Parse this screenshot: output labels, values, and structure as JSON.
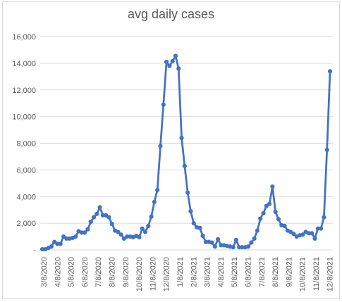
{
  "chart_data": {
    "type": "line",
    "title": "avg daily cases",
    "xlabel": "",
    "ylabel": "",
    "ylim": [
      0,
      16000
    ],
    "y_ticks": [
      "-",
      "2,000",
      "4,000",
      "6,000",
      "8,000",
      "10,000",
      "12,000",
      "14,000",
      "16,000"
    ],
    "x_ticks": [
      "3/8/2020",
      "4/8/2020",
      "5/8/2020",
      "6/8/2020",
      "7/8/2020",
      "8/8/2020",
      "9/8/2020",
      "10/8/2020",
      "11/8/2020",
      "12/8/2020",
      "1/8/2021",
      "2/8/2021",
      "3/8/2021",
      "4/8/2021",
      "5/8/2021",
      "6/8/2021",
      "7/8/2021",
      "8/8/2021",
      "9/8/2021",
      "10/8/2021",
      "11/8/2021",
      "12/8/2021"
    ],
    "gridlines": true,
    "legend": "none",
    "series_color": "#4472c4",
    "series": [
      {
        "values": [
          50,
          50,
          150,
          250,
          600,
          450,
          450,
          1000,
          850,
          850,
          900,
          1000,
          1400,
          1300,
          1300,
          1550,
          2100,
          2450,
          2700,
          3200,
          2600,
          2600,
          2450,
          1950,
          1450,
          1350,
          1150,
          850,
          1000,
          1000,
          950,
          1050,
          950,
          1600,
          1350,
          1800,
          2500,
          3600,
          4500,
          7800,
          10900,
          14100,
          13800,
          14150,
          14550,
          13600,
          8400,
          6300,
          4300,
          2900,
          2000,
          1700,
          1650,
          1050,
          600,
          600,
          550,
          250,
          800,
          350,
          350,
          300,
          250,
          200,
          750,
          200,
          200,
          200,
          250,
          550,
          850,
          1450,
          2350,
          2750,
          3300,
          3450,
          4750,
          2850,
          2300,
          1850,
          1800,
          1450,
          1350,
          1200,
          1000,
          1100,
          1150,
          1350,
          1250,
          1250,
          850,
          1600,
          1600,
          2450,
          7500,
          13400
        ]
      }
    ]
  }
}
